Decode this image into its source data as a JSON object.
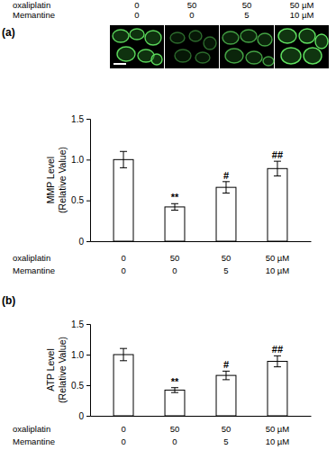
{
  "image_panel": {
    "panel_label": "(a)",
    "row_labels": [
      "oxaliplatin",
      "Memantine"
    ],
    "rows": [
      [
        "0",
        "50",
        "50",
        "50 µM"
      ],
      [
        "0",
        "0",
        "5",
        "10 µM"
      ]
    ]
  },
  "chart_data": [
    {
      "type": "bar",
      "y_label": [
        "MMP Level",
        "(Relative Value)"
      ],
      "categories": [
        null,
        null,
        null,
        null
      ],
      "values": [
        1.0,
        0.42,
        0.66,
        0.89
      ],
      "errors": [
        0.1,
        0.04,
        0.07,
        0.09
      ],
      "annotations": [
        null,
        "**",
        "#",
        "##"
      ],
      "color": "#ffffff",
      "ylim": [
        0,
        1.5
      ],
      "yticks": [
        0,
        0.5,
        {
          "value": 1,
          "label": "1.0"
        },
        1.5
      ],
      "x_table": {
        "row_labels": [
          "oxaliplatin",
          "Memantine"
        ],
        "rows": [
          [
            "0",
            "50",
            "50",
            "50 µM"
          ],
          [
            "0",
            "0",
            "5",
            "10 µM"
          ]
        ]
      }
    },
    {
      "type": "bar",
      "panel_label": "(b)",
      "y_label": [
        "ATP Level",
        "(Relative Value)"
      ],
      "categories": [
        null,
        null,
        null,
        null
      ],
      "values": [
        1.0,
        0.42,
        0.66,
        0.89
      ],
      "errors": [
        0.1,
        0.04,
        0.07,
        0.09
      ],
      "annotations": [
        null,
        "**",
        "#",
        "##"
      ],
      "color": "#ffffff",
      "ylim": [
        0,
        1.5
      ],
      "yticks": [
        0,
        0.5,
        {
          "value": 1,
          "label": "1.0"
        },
        1.5
      ],
      "x_table": {
        "row_labels": [
          "oxaliplatin",
          "Memantine"
        ],
        "rows": [
          [
            "0",
            "50",
            "50",
            "50 µM"
          ],
          [
            "0",
            "0",
            "5",
            "10 µM"
          ]
        ]
      }
    }
  ]
}
